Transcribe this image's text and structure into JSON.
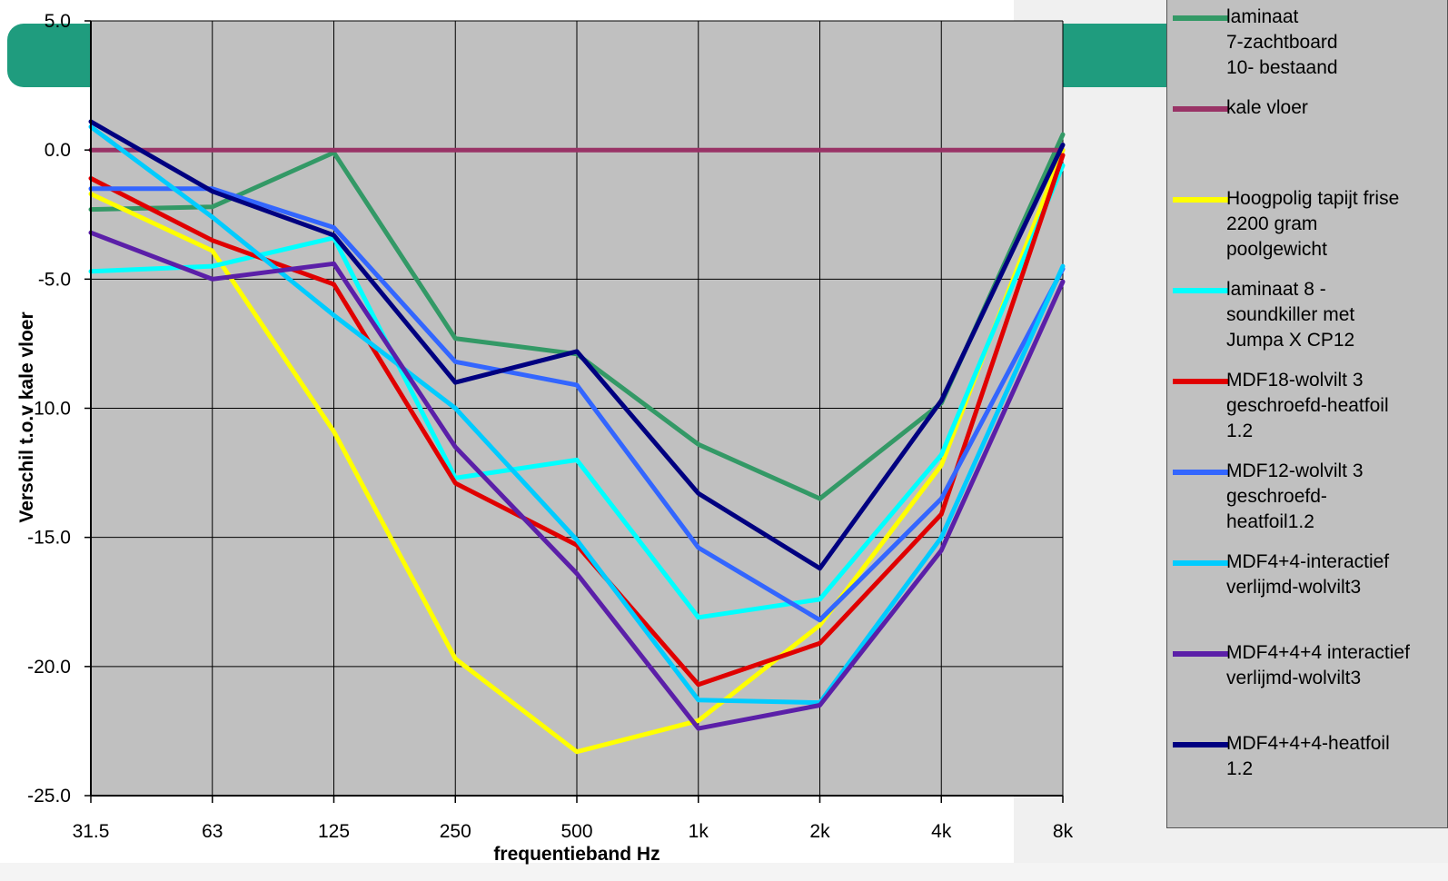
{
  "chart_data": {
    "type": "line",
    "title": "",
    "xlabel": "frequentieband Hz",
    "ylabel": "Verschil t.o.v kale vloer",
    "ylim": [
      -25.0,
      5.0
    ],
    "yticks": [
      "5.0",
      "0.0",
      "-5.0",
      "-10.0",
      "-15.0",
      "-20.0",
      "-25.0"
    ],
    "categories": [
      "31.5",
      "63",
      "125",
      "250",
      "500",
      "1k",
      "2k",
      "4k",
      "8k"
    ],
    "grid": true,
    "legend_position": "right",
    "series": [
      {
        "name": "laminaat\n7-zachtboard\n10- bestaand",
        "color": "#339966",
        "values": [
          -2.3,
          -2.2,
          -0.1,
          -7.3,
          -7.9,
          -11.4,
          -13.5,
          -9.8,
          0.6
        ]
      },
      {
        "name": "kale vloer",
        "color": "#993366",
        "values": [
          0,
          0,
          0,
          0,
          0,
          0,
          0,
          0,
          0
        ]
      },
      {
        "name": "Hoogpolig tapijt frise\n2200 gram\npoolgewicht",
        "color": "#ffff00",
        "values": [
          -1.7,
          -3.9,
          -10.9,
          -19.7,
          -23.3,
          -22.1,
          -18.4,
          -12.2,
          0.0
        ]
      },
      {
        "name": "laminaat 8 -\nsoundkiller met\nJumpa X CP12",
        "color": "#00ffff",
        "values": [
          -4.7,
          -4.5,
          -3.4,
          -12.7,
          -12.0,
          -18.1,
          -17.4,
          -11.8,
          -0.6
        ]
      },
      {
        "name": "MDF18-wolvilt 3\ngeschroefd-heatfoil\n1.2",
        "color": "#e00000",
        "values": [
          -1.1,
          -3.5,
          -5.2,
          -12.9,
          -15.3,
          -20.7,
          -19.1,
          -14.1,
          -0.2
        ]
      },
      {
        "name": "MDF12-wolvilt 3\ngeschroefd-\nheatfoil1.2",
        "color": "#3366ff",
        "values": [
          -1.5,
          -1.5,
          -3.0,
          -8.2,
          -9.1,
          -15.4,
          -18.2,
          -13.5,
          -4.6
        ]
      },
      {
        "name": "MDF4+4-interactief\nverlijmd-wolvilt3",
        "color": "#00ccff",
        "values": [
          0.9,
          -2.6,
          -6.4,
          -10.0,
          -15.1,
          -21.3,
          -21.4,
          -15.0,
          -4.5
        ]
      },
      {
        "name": "MDF4+4+4 interactief\nverlijmd-wolvilt3",
        "color": "#5b1fa8",
        "values": [
          -3.2,
          -5.0,
          -4.4,
          -11.5,
          -16.4,
          -22.4,
          -21.5,
          -15.5,
          -5.1
        ]
      },
      {
        "name": "MDF4+4+4-heatfoil\n1.2",
        "color": "#000080",
        "values": [
          1.1,
          -1.6,
          -3.3,
          -9.0,
          -7.8,
          -13.3,
          -16.2,
          -9.7,
          0.2
        ]
      }
    ]
  },
  "legend_layout_colors": {
    "plot_background": "#c0c0c0",
    "banner": "#1f9c7e"
  }
}
